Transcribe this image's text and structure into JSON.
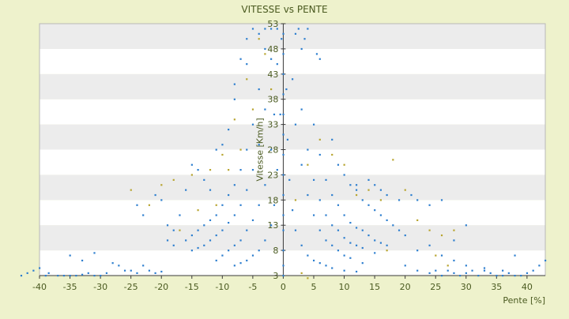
{
  "chart_data": {
    "type": "scatter",
    "title": "VITESSE vs PENTE",
    "xlabel": "Pente [%]",
    "ylabel": "Vitesse [Km/h]",
    "xlim": [
      -40,
      43
    ],
    "ylim": [
      3,
      53
    ],
    "x_ticks": [
      "-40",
      "-35",
      "-30",
      "-25",
      "-20",
      "-15",
      "-10",
      "-5",
      "0",
      "5",
      "10",
      "15",
      "20",
      "25",
      "30",
      "35",
      "40"
    ],
    "y_ticks": [
      "3",
      "8",
      "13",
      "18",
      "23",
      "28",
      "33",
      "38",
      "43",
      "48",
      "53"
    ],
    "grid": "horizontal-bands",
    "legend": "none",
    "colors": {
      "points_primary": "#2e7fcf",
      "points_secondary": "#b8a530",
      "band_light": "#ffffff",
      "band_dark": "#ececec",
      "frame": "#b8b8b8"
    },
    "series": [
      {
        "color": "#2e7fcf",
        "points": [
          [
            -40,
            4.5
          ],
          [
            -39,
            3
          ],
          [
            -38.5,
            3.5
          ],
          [
            -37,
            3
          ],
          [
            -36,
            3
          ],
          [
            -35,
            3
          ],
          [
            -34,
            3
          ],
          [
            -33,
            3.2
          ],
          [
            -32,
            3.5
          ],
          [
            -31,
            3
          ],
          [
            -30,
            3
          ],
          [
            -29,
            3.5
          ],
          [
            -28,
            5.5
          ],
          [
            -35,
            7
          ],
          [
            -33,
            6
          ],
          [
            -31,
            7.5
          ],
          [
            -27,
            5
          ],
          [
            -26,
            4
          ],
          [
            -25,
            4
          ],
          [
            -24,
            3.5
          ],
          [
            -23,
            5
          ],
          [
            -22,
            4
          ],
          [
            -21,
            3.5
          ],
          [
            -20,
            3.8
          ],
          [
            -43,
            3
          ],
          [
            -42,
            3.5
          ],
          [
            -41,
            4
          ],
          [
            -24,
            17
          ],
          [
            -23,
            15
          ],
          [
            -21,
            19
          ],
          [
            -20,
            18
          ],
          [
            -19,
            13
          ],
          [
            -18,
            12
          ],
          [
            -17,
            15
          ],
          [
            -16,
            20
          ],
          [
            -15,
            25
          ],
          [
            -14,
            24
          ],
          [
            -13,
            22
          ],
          [
            -12,
            20
          ],
          [
            -11,
            28
          ],
          [
            -10,
            29
          ],
          [
            -9,
            32
          ],
          [
            -8,
            41
          ],
          [
            -7,
            46
          ],
          [
            -6,
            50
          ],
          [
            -5,
            52
          ],
          [
            -4,
            51
          ],
          [
            -3,
            52
          ],
          [
            -6,
            45
          ],
          [
            -8,
            38
          ],
          [
            -19,
            10
          ],
          [
            -18,
            9
          ],
          [
            -16,
            10
          ],
          [
            -15,
            11
          ],
          [
            -14,
            12
          ],
          [
            -13,
            13
          ],
          [
            -12,
            14
          ],
          [
            -11,
            15
          ],
          [
            -10,
            17
          ],
          [
            -9,
            19
          ],
          [
            -8,
            21
          ],
          [
            -7,
            24
          ],
          [
            -6,
            28
          ],
          [
            -5,
            33
          ],
          [
            -4,
            40
          ],
          [
            -3,
            48
          ],
          [
            -15,
            8
          ],
          [
            -14,
            8.5
          ],
          [
            -13,
            9
          ],
          [
            -12,
            10
          ],
          [
            -11,
            11
          ],
          [
            -10,
            12
          ],
          [
            -9,
            13.5
          ],
          [
            -8,
            15
          ],
          [
            -7,
            17
          ],
          [
            -6,
            20
          ],
          [
            -5,
            24
          ],
          [
            -4,
            29
          ],
          [
            -3,
            36
          ],
          [
            -2,
            46
          ],
          [
            -2,
            52
          ],
          [
            -11,
            6
          ],
          [
            -10,
            7
          ],
          [
            -9,
            8
          ],
          [
            -8,
            9
          ],
          [
            -7,
            10
          ],
          [
            -6,
            12
          ],
          [
            -5,
            14
          ],
          [
            -4,
            17
          ],
          [
            -3,
            21
          ],
          [
            -2,
            28
          ],
          [
            -1.5,
            35
          ],
          [
            -1,
            45
          ],
          [
            -1,
            52
          ],
          [
            -8,
            5
          ],
          [
            -7,
            5.5
          ],
          [
            -6,
            6
          ],
          [
            -5,
            7
          ],
          [
            -4,
            8
          ],
          [
            -3,
            10
          ],
          [
            -2,
            13
          ],
          [
            -1.5,
            17
          ],
          [
            -1,
            24
          ],
          [
            -0.5,
            35
          ],
          [
            -0.3,
            50
          ],
          [
            0,
            3
          ],
          [
            0,
            5
          ],
          [
            0,
            8
          ],
          [
            0,
            12
          ],
          [
            0,
            15
          ],
          [
            0,
            19
          ],
          [
            0,
            23
          ],
          [
            0,
            27
          ],
          [
            0,
            31
          ],
          [
            0,
            35
          ],
          [
            0,
            39
          ],
          [
            0,
            43
          ],
          [
            0,
            47
          ],
          [
            0,
            51
          ],
          [
            0.5,
            40
          ],
          [
            0.7,
            30
          ],
          [
            1,
            22
          ],
          [
            1.5,
            16
          ],
          [
            2,
            12
          ],
          [
            3,
            9
          ],
          [
            4,
            7
          ],
          [
            5,
            6
          ],
          [
            6,
            5.5
          ],
          [
            7,
            5
          ],
          [
            8,
            4.5
          ],
          [
            10,
            4
          ],
          [
            12,
            3.8
          ],
          [
            1.5,
            42
          ],
          [
            2,
            33
          ],
          [
            3,
            25
          ],
          [
            4,
            19
          ],
          [
            5,
            15
          ],
          [
            6,
            12
          ],
          [
            7,
            10
          ],
          [
            8,
            9
          ],
          [
            9,
            8
          ],
          [
            10,
            7
          ],
          [
            11,
            6.5
          ],
          [
            13,
            5.5
          ],
          [
            3,
            36
          ],
          [
            4,
            28
          ],
          [
            5,
            22
          ],
          [
            6,
            18
          ],
          [
            7,
            15
          ],
          [
            8,
            13
          ],
          [
            9,
            12
          ],
          [
            10,
            10.5
          ],
          [
            11,
            9.5
          ],
          [
            12,
            9
          ],
          [
            13,
            8.5
          ],
          [
            15,
            7.5
          ],
          [
            5,
            33
          ],
          [
            6,
            27
          ],
          [
            7,
            22
          ],
          [
            8,
            19
          ],
          [
            9,
            17
          ],
          [
            10,
            15
          ],
          [
            11,
            13.5
          ],
          [
            12,
            12.5
          ],
          [
            13,
            12
          ],
          [
            14,
            11
          ],
          [
            15,
            10
          ],
          [
            16,
            9.5
          ],
          [
            17,
            9
          ],
          [
            8,
            30
          ],
          [
            9,
            25
          ],
          [
            10,
            23
          ],
          [
            11,
            21
          ],
          [
            12,
            20
          ],
          [
            13,
            18
          ],
          [
            14,
            17
          ],
          [
            15,
            16
          ],
          [
            16,
            15
          ],
          [
            17,
            14
          ],
          [
            18,
            13
          ],
          [
            19,
            12
          ],
          [
            20,
            11
          ],
          [
            12,
            21
          ],
          [
            14,
            22
          ],
          [
            15,
            21
          ],
          [
            16,
            20
          ],
          [
            17,
            19
          ],
          [
            19,
            18
          ],
          [
            21,
            19
          ],
          [
            22,
            18
          ],
          [
            24,
            17
          ],
          [
            26,
            18
          ],
          [
            28,
            10
          ],
          [
            30,
            13
          ],
          [
            20,
            5
          ],
          [
            22,
            4
          ],
          [
            24,
            3.5
          ],
          [
            25,
            4
          ],
          [
            26,
            3
          ],
          [
            27,
            4
          ],
          [
            28,
            3.5
          ],
          [
            29,
            3
          ],
          [
            30,
            3.5
          ],
          [
            31,
            4
          ],
          [
            32,
            3
          ],
          [
            33,
            4
          ],
          [
            34,
            3.5
          ],
          [
            35,
            3
          ],
          [
            36,
            3
          ],
          [
            37,
            3.5
          ],
          [
            38,
            3
          ],
          [
            39,
            3
          ],
          [
            40,
            3.5
          ],
          [
            41,
            4
          ],
          [
            42,
            5
          ],
          [
            43,
            6
          ],
          [
            22,
            8
          ],
          [
            24,
            9
          ],
          [
            26,
            7
          ],
          [
            28,
            6
          ],
          [
            30,
            5
          ],
          [
            33,
            4.5
          ],
          [
            36,
            4
          ],
          [
            38,
            7
          ],
          [
            2,
            51
          ],
          [
            2.5,
            52
          ],
          [
            3,
            48
          ],
          [
            3.5,
            50
          ],
          [
            4,
            52
          ],
          [
            5.5,
            47
          ],
          [
            6,
            46
          ]
        ]
      },
      {
        "color": "#b8a530",
        "points": [
          [
            -25,
            20
          ],
          [
            -22,
            17
          ],
          [
            -20,
            21
          ],
          [
            -18,
            22
          ],
          [
            -15,
            23
          ],
          [
            -12,
            24
          ],
          [
            -10,
            27
          ],
          [
            -8,
            34
          ],
          [
            -6,
            42
          ],
          [
            -4,
            50
          ],
          [
            -3,
            47
          ],
          [
            -17,
            12
          ],
          [
            -14,
            16
          ],
          [
            -11,
            17
          ],
          [
            -9,
            24
          ],
          [
            -7,
            28
          ],
          [
            -5,
            36
          ],
          [
            -2,
            40
          ],
          [
            2,
            18
          ],
          [
            4,
            25
          ],
          [
            6,
            30
          ],
          [
            8,
            27
          ],
          [
            10,
            25
          ],
          [
            12,
            19
          ],
          [
            14,
            20
          ],
          [
            16,
            18
          ],
          [
            18,
            26
          ],
          [
            20,
            20
          ],
          [
            22,
            14
          ],
          [
            24,
            12
          ],
          [
            26,
            11
          ],
          [
            28,
            12
          ],
          [
            3,
            3.5
          ],
          [
            4,
            2.5
          ],
          [
            17,
            8
          ],
          [
            25,
            7
          ],
          [
            27,
            5
          ]
        ]
      }
    ]
  }
}
